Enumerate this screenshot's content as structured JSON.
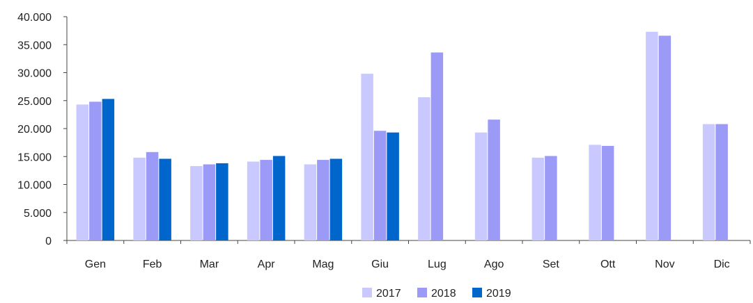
{
  "chart_data": {
    "type": "bar",
    "categories": [
      "Gen",
      "Feb",
      "Mar",
      "Apr",
      "Mag",
      "Giu",
      "Lug",
      "Ago",
      "Set",
      "Ott",
      "Nov",
      "Dic"
    ],
    "series": [
      {
        "name": "2017",
        "color": "#c9c9ff",
        "values": [
          24300,
          14800,
          13300,
          14100,
          13600,
          29800,
          25600,
          19300,
          14800,
          17100,
          37300,
          20800
        ]
      },
      {
        "name": "2018",
        "color": "#9b9bf7",
        "values": [
          24800,
          15800,
          13600,
          14400,
          14400,
          19600,
          33600,
          21600,
          15100,
          16900,
          36600,
          20800
        ]
      },
      {
        "name": "2019",
        "color": "#0066cc",
        "values": [
          25300,
          14600,
          13800,
          15100,
          14600,
          19300,
          null,
          null,
          null,
          null,
          null,
          null
        ]
      }
    ],
    "y_ticks": [
      "0",
      "5.000",
      "10.000",
      "15.000",
      "20.000",
      "25.000",
      "30.000",
      "35.000",
      "40.000"
    ],
    "ylim": [
      0,
      40000
    ],
    "title": "",
    "xlabel": "",
    "ylabel": "",
    "grid": false,
    "legend_position": "bottom-center"
  }
}
